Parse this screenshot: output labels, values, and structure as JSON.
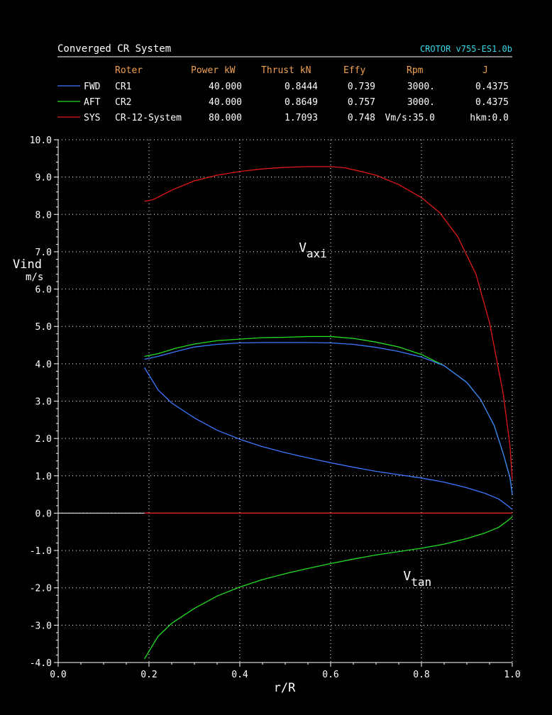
{
  "header": {
    "title": "Converged CR System",
    "version": "CROTOR v755-ES1.0b",
    "columns": [
      "Roter",
      "Power kW",
      "Thrust kN",
      "Effy",
      "Rpm",
      "J"
    ],
    "rows": [
      {
        "tag": "FWD",
        "name": "CR1",
        "power": "40.000",
        "thrust": "0.8444",
        "effy": "0.739",
        "rpm": "3000.",
        "j": "0.4375",
        "color": "#3c78ff"
      },
      {
        "tag": "AFT",
        "name": "CR2",
        "power": "40.000",
        "thrust": "0.8649",
        "effy": "0.757",
        "rpm": "3000.",
        "j": "0.4375",
        "color": "#22dd22"
      },
      {
        "tag": "SYS",
        "name": "CR-12-System",
        "power": "80.000",
        "thrust": "1.7093",
        "effy": "0.748",
        "rpm": "Vm/s:35.0",
        "j": "hkm:0.0",
        "color": "#e01818"
      }
    ],
    "colors": {
      "title": "#ffffff",
      "version": "#38d8e8",
      "columns": "#f0a050",
      "text": "#ffffff"
    }
  },
  "chart_data": {
    "type": "line",
    "xlabel": "r/R",
    "ylabel": "Vind",
    "ylabel_unit": "m/s",
    "xlim": [
      0.0,
      1.0
    ],
    "ylim": [
      -4.0,
      10.0
    ],
    "xticks": [
      "0.0",
      "0.2",
      "0.4",
      "0.6",
      "0.8",
      "1.0"
    ],
    "yticks": [
      "-4.0",
      "-3.0",
      "-2.0",
      "-1.0",
      "0.0",
      "1.0",
      "2.0",
      "3.0",
      "4.0",
      "5.0",
      "6.0",
      "7.0",
      "8.0",
      "9.0",
      "10.0"
    ],
    "grid": true,
    "annotations": [
      {
        "main": "V",
        "sub": "axi",
        "x": 0.53,
        "y": 7.0
      },
      {
        "main": "V",
        "sub": "tan",
        "x": 0.76,
        "y": -1.8
      }
    ],
    "series": [
      {
        "color": "#e01818",
        "x": [
          0.19,
          0.21,
          0.25,
          0.3,
          0.35,
          0.4,
          0.45,
          0.5,
          0.55,
          0.6,
          0.63,
          0.66,
          0.7,
          0.75,
          0.8,
          0.84,
          0.88,
          0.92,
          0.95,
          0.98,
          0.995,
          1.0
        ],
        "y": [
          8.35,
          8.4,
          8.65,
          8.9,
          9.05,
          9.15,
          9.22,
          9.26,
          9.28,
          9.28,
          9.25,
          9.17,
          9.05,
          8.8,
          8.45,
          8.05,
          7.4,
          6.4,
          5.1,
          3.2,
          1.8,
          0.9
        ]
      },
      {
        "color": "#22dd22",
        "x": [
          0.19,
          0.22,
          0.26,
          0.3,
          0.35,
          0.4,
          0.45,
          0.5,
          0.55,
          0.6,
          0.65,
          0.7,
          0.75,
          0.8,
          0.85,
          0.9,
          0.93,
          0.96,
          0.98,
          0.995,
          1.0
        ],
        "y": [
          4.2,
          4.27,
          4.42,
          4.53,
          4.62,
          4.66,
          4.7,
          4.71,
          4.73,
          4.73,
          4.68,
          4.58,
          4.45,
          4.25,
          3.95,
          3.5,
          3.05,
          2.35,
          1.6,
          0.95,
          0.5
        ]
      },
      {
        "color": "#3c78ff",
        "x": [
          0.19,
          0.22,
          0.26,
          0.3,
          0.35,
          0.4,
          0.45,
          0.5,
          0.55,
          0.6,
          0.65,
          0.7,
          0.75,
          0.8,
          0.85,
          0.9,
          0.93,
          0.96,
          0.98,
          0.995,
          1.0
        ],
        "y": [
          4.12,
          4.2,
          4.33,
          4.45,
          4.52,
          4.56,
          4.57,
          4.57,
          4.57,
          4.56,
          4.52,
          4.44,
          4.33,
          4.18,
          3.95,
          3.5,
          3.05,
          2.35,
          1.6,
          0.95,
          0.5
        ]
      },
      {
        "color": "#3c78ff",
        "x": [
          0.19,
          0.2,
          0.22,
          0.25,
          0.3,
          0.35,
          0.4,
          0.45,
          0.5,
          0.55,
          0.6,
          0.65,
          0.7,
          0.75,
          0.8,
          0.85,
          0.9,
          0.94,
          0.97,
          0.99,
          1.0
        ],
        "y": [
          3.9,
          3.7,
          3.3,
          2.95,
          2.55,
          2.22,
          1.98,
          1.78,
          1.62,
          1.48,
          1.35,
          1.23,
          1.12,
          1.03,
          0.94,
          0.83,
          0.68,
          0.53,
          0.38,
          0.2,
          0.1
        ]
      },
      {
        "color": "#22dd22",
        "x": [
          0.19,
          0.2,
          0.22,
          0.25,
          0.3,
          0.35,
          0.4,
          0.45,
          0.5,
          0.55,
          0.6,
          0.65,
          0.7,
          0.75,
          0.8,
          0.85,
          0.9,
          0.94,
          0.97,
          0.99,
          1.0
        ],
        "y": [
          -3.9,
          -3.7,
          -3.3,
          -2.95,
          -2.55,
          -2.22,
          -1.98,
          -1.78,
          -1.62,
          -1.48,
          -1.35,
          -1.23,
          -1.12,
          -1.03,
          -0.94,
          -0.83,
          -0.68,
          -0.53,
          -0.38,
          -0.2,
          -0.1
        ]
      },
      {
        "color": "#e01818",
        "x": [
          0.19,
          1.0
        ],
        "y": [
          0.0,
          0.0
        ]
      }
    ]
  }
}
